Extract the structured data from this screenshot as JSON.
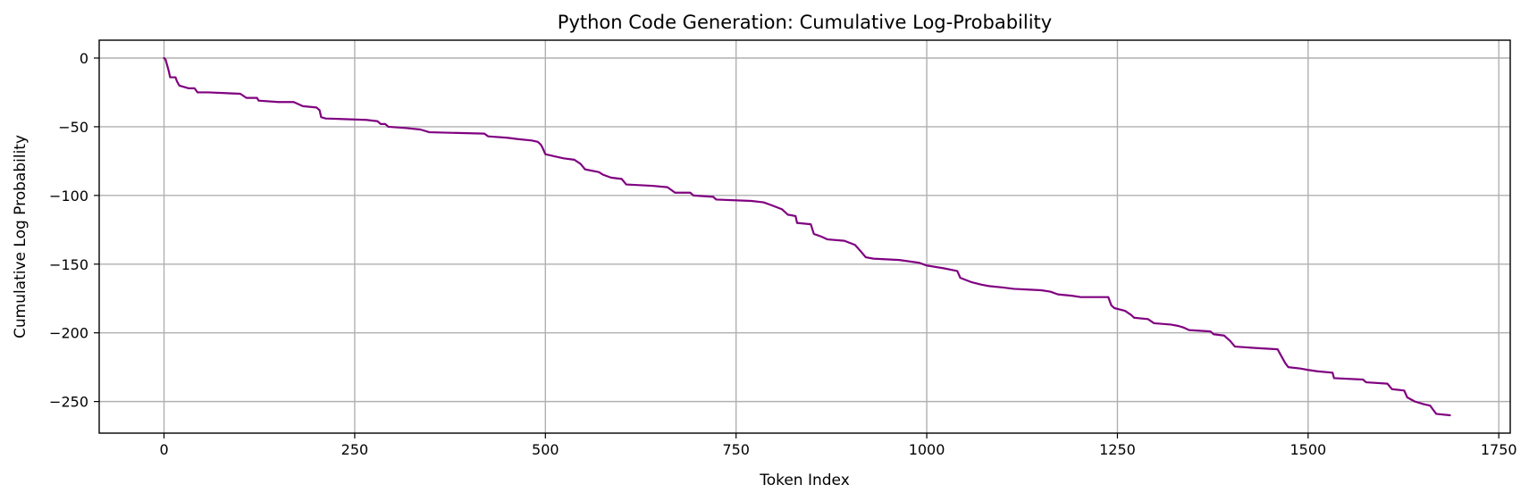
{
  "chart_data": {
    "type": "line",
    "title": "Python Code Generation: Cumulative Log-Probability",
    "xlabel": "Token Index",
    "ylabel": "Cumulative Log Probability",
    "xlim": [
      -85,
      1765
    ],
    "ylim": [
      -273,
      13
    ],
    "xticks": [
      0,
      250,
      500,
      750,
      1000,
      1250,
      1500,
      1750
    ],
    "yticks": [
      0,
      -50,
      -100,
      -150,
      -200,
      -250
    ],
    "grid": true,
    "legend": "none",
    "series": [
      {
        "color": "#800080",
        "points": [
          [
            0,
            0
          ],
          [
            2,
            -1
          ],
          [
            4,
            -5
          ],
          [
            6,
            -9
          ],
          [
            8,
            -14
          ],
          [
            15,
            -14
          ],
          [
            17,
            -17
          ],
          [
            20,
            -20
          ],
          [
            26,
            -21
          ],
          [
            32,
            -22
          ],
          [
            40,
            -22
          ],
          [
            44,
            -25
          ],
          [
            58,
            -25
          ],
          [
            100,
            -26
          ],
          [
            108,
            -29
          ],
          [
            122,
            -29
          ],
          [
            124,
            -31
          ],
          [
            150,
            -32
          ],
          [
            170,
            -32
          ],
          [
            182,
            -35
          ],
          [
            200,
            -36
          ],
          [
            204,
            -38
          ],
          [
            206,
            -43
          ],
          [
            212,
            -44
          ],
          [
            265,
            -45
          ],
          [
            280,
            -46
          ],
          [
            284,
            -48
          ],
          [
            290,
            -48
          ],
          [
            294,
            -50
          ],
          [
            318,
            -51
          ],
          [
            336,
            -52
          ],
          [
            348,
            -54
          ],
          [
            420,
            -55
          ],
          [
            425,
            -57
          ],
          [
            450,
            -58
          ],
          [
            464,
            -59
          ],
          [
            482,
            -60
          ],
          [
            490,
            -61
          ],
          [
            494,
            -63
          ],
          [
            496,
            -65
          ],
          [
            500,
            -70
          ],
          [
            516,
            -72
          ],
          [
            524,
            -73
          ],
          [
            538,
            -74
          ],
          [
            546,
            -77
          ],
          [
            552,
            -81
          ],
          [
            570,
            -83
          ],
          [
            576,
            -85
          ],
          [
            586,
            -87
          ],
          [
            600,
            -88
          ],
          [
            606,
            -92
          ],
          [
            640,
            -93
          ],
          [
            660,
            -94
          ],
          [
            670,
            -98
          ],
          [
            690,
            -98
          ],
          [
            694,
            -100
          ],
          [
            720,
            -101
          ],
          [
            724,
            -103
          ],
          [
            770,
            -104
          ],
          [
            786,
            -105
          ],
          [
            796,
            -107
          ],
          [
            810,
            -110
          ],
          [
            818,
            -114
          ],
          [
            828,
            -115
          ],
          [
            830,
            -120
          ],
          [
            848,
            -121
          ],
          [
            852,
            -128
          ],
          [
            862,
            -130
          ],
          [
            870,
            -132
          ],
          [
            892,
            -133
          ],
          [
            906,
            -136
          ],
          [
            914,
            -141
          ],
          [
            920,
            -145
          ],
          [
            930,
            -146
          ],
          [
            964,
            -147
          ],
          [
            990,
            -149
          ],
          [
            1000,
            -151
          ],
          [
            1022,
            -153
          ],
          [
            1040,
            -155
          ],
          [
            1044,
            -160
          ],
          [
            1058,
            -163
          ],
          [
            1072,
            -165
          ],
          [
            1082,
            -166
          ],
          [
            1100,
            -167
          ],
          [
            1114,
            -168
          ],
          [
            1150,
            -169
          ],
          [
            1162,
            -170
          ],
          [
            1172,
            -172
          ],
          [
            1190,
            -173
          ],
          [
            1202,
            -174
          ],
          [
            1238,
            -174
          ],
          [
            1242,
            -180
          ],
          [
            1246,
            -182
          ],
          [
            1260,
            -184
          ],
          [
            1268,
            -187
          ],
          [
            1272,
            -189
          ],
          [
            1290,
            -190
          ],
          [
            1298,
            -193
          ],
          [
            1320,
            -194
          ],
          [
            1330,
            -195
          ],
          [
            1336,
            -196
          ],
          [
            1344,
            -198
          ],
          [
            1372,
            -199
          ],
          [
            1376,
            -201
          ],
          [
            1390,
            -202
          ],
          [
            1398,
            -206
          ],
          [
            1404,
            -210
          ],
          [
            1430,
            -211
          ],
          [
            1460,
            -212
          ],
          [
            1464,
            -216
          ],
          [
            1470,
            -222
          ],
          [
            1474,
            -225
          ],
          [
            1490,
            -226
          ],
          [
            1500,
            -227
          ],
          [
            1512,
            -228
          ],
          [
            1532,
            -229
          ],
          [
            1534,
            -233
          ],
          [
            1572,
            -234
          ],
          [
            1576,
            -236
          ],
          [
            1604,
            -237
          ],
          [
            1610,
            -241
          ],
          [
            1626,
            -242
          ],
          [
            1630,
            -247
          ],
          [
            1640,
            -250
          ],
          [
            1652,
            -252
          ],
          [
            1660,
            -253
          ],
          [
            1664,
            -256
          ],
          [
            1668,
            -259
          ],
          [
            1686,
            -260
          ]
        ]
      }
    ]
  }
}
